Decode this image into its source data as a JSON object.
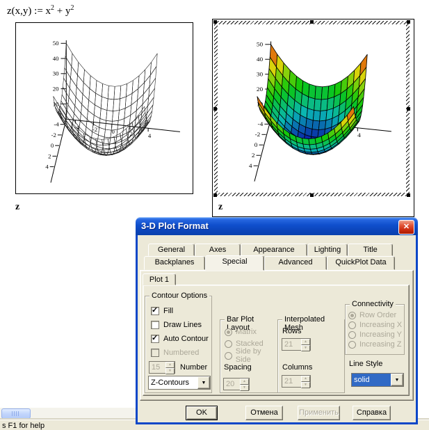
{
  "worksheet": {
    "formula": {
      "base": "z(x,y) := x",
      "exp1": "2",
      "mid": " + y",
      "exp2": "2"
    },
    "plot_left_label": "z",
    "plot_right_label": "z"
  },
  "chart_data": [
    {
      "type": "surface",
      "title": "z(x,y) = x^2 + y^2",
      "expression": "x*x + y*y",
      "style": "wireframe",
      "fill": false,
      "x_range": [
        -5,
        5
      ],
      "y_range": [
        -5,
        5
      ],
      "z_range": [
        0,
        50
      ],
      "z_ticks": [
        50,
        40,
        30,
        20,
        10
      ],
      "xy_ticks": [
        -4,
        -2,
        0,
        2,
        4
      ],
      "grid_divisions": 15,
      "axis_label": "z"
    },
    {
      "type": "surface",
      "title": "z(x,y) = x^2 + y^2",
      "expression": "x*x + y*y",
      "style": "filled",
      "fill": true,
      "colormap": "rainbow",
      "x_range": [
        -5,
        5
      ],
      "y_range": [
        -5,
        5
      ],
      "z_range": [
        0,
        50
      ],
      "z_ticks": [
        50,
        40,
        30,
        20,
        10
      ],
      "xy_ticks": [
        -4,
        -2,
        0,
        2,
        4
      ],
      "grid_divisions": 15,
      "axis_label": "z",
      "selected": true
    }
  ],
  "dialog": {
    "title": "3-D Plot Format",
    "close_icon": "✕",
    "tabs_row1": [
      "General",
      "Axes",
      "Appearance",
      "Lighting",
      "Title"
    ],
    "tabs_row2": [
      "Backplanes",
      "Special",
      "Advanced",
      "QuickPlot Data"
    ],
    "active_tab": "Special",
    "plot_tab": "Plot 1",
    "contour_options": {
      "caption": "Contour Options",
      "items": [
        {
          "label": "Fill",
          "checked": true,
          "enabled": true
        },
        {
          "label": "Draw Lines",
          "checked": false,
          "enabled": true
        },
        {
          "label": "Auto Contour",
          "checked": true,
          "enabled": true
        },
        {
          "label": "Numbered",
          "checked": false,
          "enabled": false
        }
      ],
      "number_value": "15",
      "number_label": "Number",
      "contour_select_value": "Z-Contours"
    },
    "bar_plot_layout": {
      "caption": "Bar Plot Layout",
      "options": [
        "Matrix",
        "Stacked",
        "Side by Side"
      ],
      "selected": "Matrix",
      "enabled": false,
      "spacing_label": "Spacing",
      "spacing_value": "20"
    },
    "interpolated_mesh": {
      "caption": "Interpolated Mesh",
      "rows_label": "Rows",
      "rows_value": "21",
      "columns_label": "Columns",
      "columns_value": "21",
      "enabled": false
    },
    "connectivity": {
      "caption": "Connectivity",
      "options": [
        "Row Order",
        "Increasing X",
        "Increasing Y",
        "Increasing Z"
      ],
      "selected": "Row Order",
      "enabled": false,
      "line_style_label": "Line Style",
      "line_style_value": "solid"
    },
    "buttons": {
      "ok": "OK",
      "cancel": "Отмена",
      "apply": "Применить",
      "help": "Справка"
    }
  },
  "icons": {
    "dropdown": "▼",
    "spin_up": "▲",
    "spin_down": "▼"
  },
  "status_bar": {
    "text": "s F1 for help"
  }
}
